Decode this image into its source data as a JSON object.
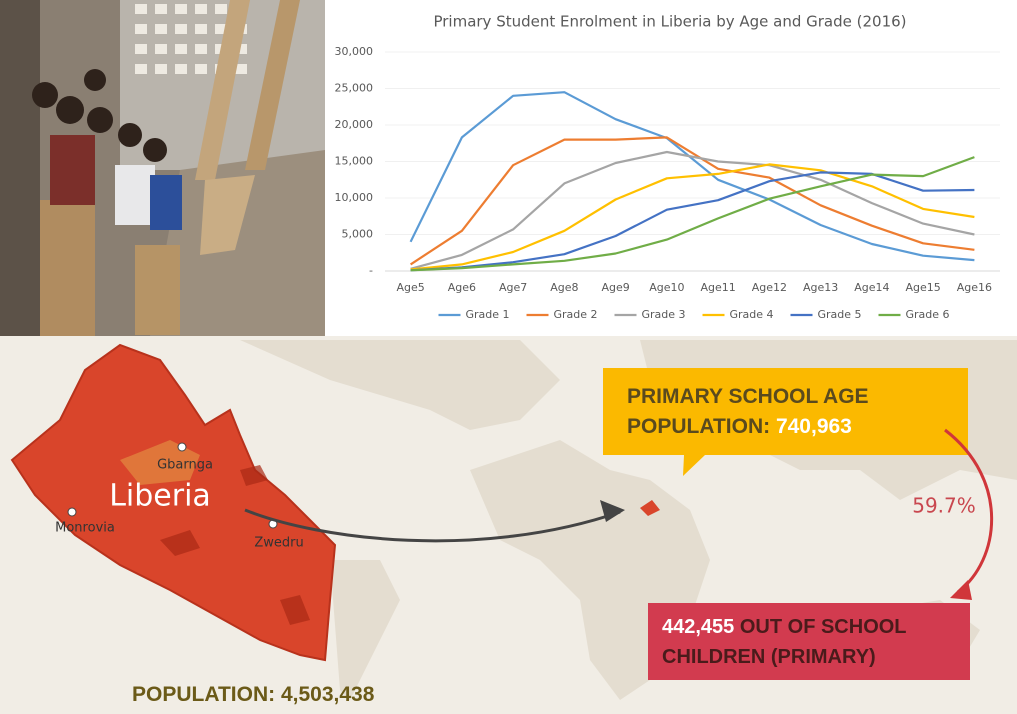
{
  "chart_data": {
    "type": "line",
    "title": "Primary Student Enrolment in Liberia by Age and Grade (2016)",
    "categories": [
      "Age5",
      "Age6",
      "Age7",
      "Age8",
      "Age9",
      "Age10",
      "Age11",
      "Age12",
      "Age13",
      "Age14",
      "Age15",
      "Age16"
    ],
    "series": [
      {
        "name": "Grade 1",
        "color": "#5b9bd5",
        "values": [
          4000,
          18300,
          24000,
          24500,
          20800,
          18200,
          12500,
          9800,
          6300,
          3700,
          2100,
          1500
        ]
      },
      {
        "name": "Grade 2",
        "color": "#ed7d31",
        "values": [
          900,
          5500,
          14500,
          18000,
          18000,
          18300,
          14000,
          12800,
          9000,
          6200,
          3800,
          2900
        ]
      },
      {
        "name": "Grade 3",
        "color": "#a5a5a5",
        "values": [
          300,
          2200,
          5700,
          12000,
          14800,
          16300,
          15000,
          14500,
          12500,
          9300,
          6500,
          5000
        ]
      },
      {
        "name": "Grade 4",
        "color": "#ffc000",
        "values": [
          200,
          900,
          2600,
          5500,
          9800,
          12700,
          13300,
          14600,
          13800,
          11600,
          8500,
          7400
        ]
      },
      {
        "name": "Grade 5",
        "color": "#4472c4",
        "values": [
          100,
          500,
          1200,
          2300,
          4800,
          8400,
          9700,
          12300,
          13500,
          13300,
          11000,
          11100
        ]
      },
      {
        "name": "Grade 6",
        "color": "#70ad47",
        "values": [
          100,
          400,
          900,
          1400,
          2400,
          4300,
          7200,
          9900,
          11600,
          13200,
          13000,
          15600
        ]
      }
    ],
    "ylim": [
      0,
      30000
    ],
    "yticks": [
      {
        "value": 0,
        "label": "-"
      },
      {
        "value": 5000,
        "label": "5,000"
      },
      {
        "value": 10000,
        "label": "10,000"
      },
      {
        "value": 15000,
        "label": "15,000"
      },
      {
        "value": 20000,
        "label": "20,000"
      },
      {
        "value": 25000,
        "label": "25,000"
      },
      {
        "value": 30000,
        "label": "30,000"
      }
    ],
    "legend": "bottom"
  },
  "infographic": {
    "country": "Liberia",
    "cities": [
      "Gbarnga",
      "Monrovia",
      "Zwedru"
    ],
    "school_age": {
      "line1": "PRIMARY SCHOOL AGE",
      "line2": "POPULATION:",
      "value": "740,963"
    },
    "share": "59.7%",
    "out_of_school": {
      "value": "442,455",
      "line1": "OUT OF SCHOOL",
      "line2": "CHILDREN (PRIMARY)"
    },
    "population": {
      "label": "POPULATION:",
      "value": "4,503,438"
    }
  }
}
